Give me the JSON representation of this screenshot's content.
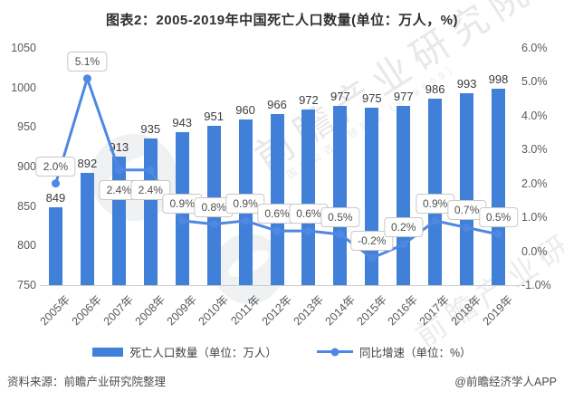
{
  "chart_data": {
    "type": "bar+line",
    "title": "图表2：2005-2019年中国死亡人口数量(单位：万人，%)",
    "categories": [
      "2005年",
      "2006年",
      "2007年",
      "2008年",
      "2009年",
      "2010年",
      "2011年",
      "2012年",
      "2013年",
      "2014年",
      "2015年",
      "2016年",
      "2017年",
      "2018年",
      "2019年"
    ],
    "series": [
      {
        "name": "死亡人口数量（单位：万人）",
        "type": "bar",
        "yaxis": "left",
        "color": "#4180D8",
        "values": [
          849,
          892,
          913,
          935,
          943,
          951,
          960,
          966,
          972,
          977,
          975,
          977,
          986,
          993,
          998
        ]
      },
      {
        "name": "同比增速（单位：%）",
        "type": "line",
        "yaxis": "right",
        "color": "#4F87E2",
        "values": [
          2.0,
          5.1,
          2.4,
          2.4,
          0.9,
          0.8,
          0.9,
          0.6,
          0.6,
          0.5,
          -0.2,
          0.2,
          0.9,
          0.7,
          0.5
        ],
        "point_labels": [
          "2.0%",
          "5.1%",
          "2.4%",
          "2.4%",
          "0.9%",
          "0.8%",
          "0.9%",
          "0.6%",
          "0.6%",
          "0.5%",
          "-0.2%",
          "0.2%",
          "0.9%",
          "0.7%",
          "0.5%"
        ],
        "label_placement": [
          "above",
          "above",
          "below",
          "below",
          "above",
          "above",
          "above",
          "above",
          "above",
          "above",
          "above",
          "above",
          "above",
          "above",
          "above"
        ]
      }
    ],
    "left_axis": {
      "min": 750,
      "max": 1050,
      "ticks": [
        "1050",
        "1000",
        "950",
        "900",
        "850",
        "800",
        "750"
      ]
    },
    "right_axis": {
      "min": -1.0,
      "max": 6.0,
      "ticks": [
        "6.0%",
        "5.0%",
        "4.0%",
        "3.0%",
        "2.0%",
        "1.0%",
        "0.0%",
        "-1.0%"
      ]
    },
    "grid": false,
    "legend_position": "bottom"
  },
  "legend": {
    "bar_label": "死亡人口数量（单位：万人）",
    "line_label": "同比增速（单位：%）"
  },
  "footer": {
    "source": "资料来源：前瞻产业研究院整理",
    "credit": "@前瞻经济学人APP"
  },
  "watermark": {
    "brand": "前瞻产业研究院",
    "tagline": "中国产业咨询领导者（839599）",
    "brand2": "前瞻产业研究院"
  }
}
